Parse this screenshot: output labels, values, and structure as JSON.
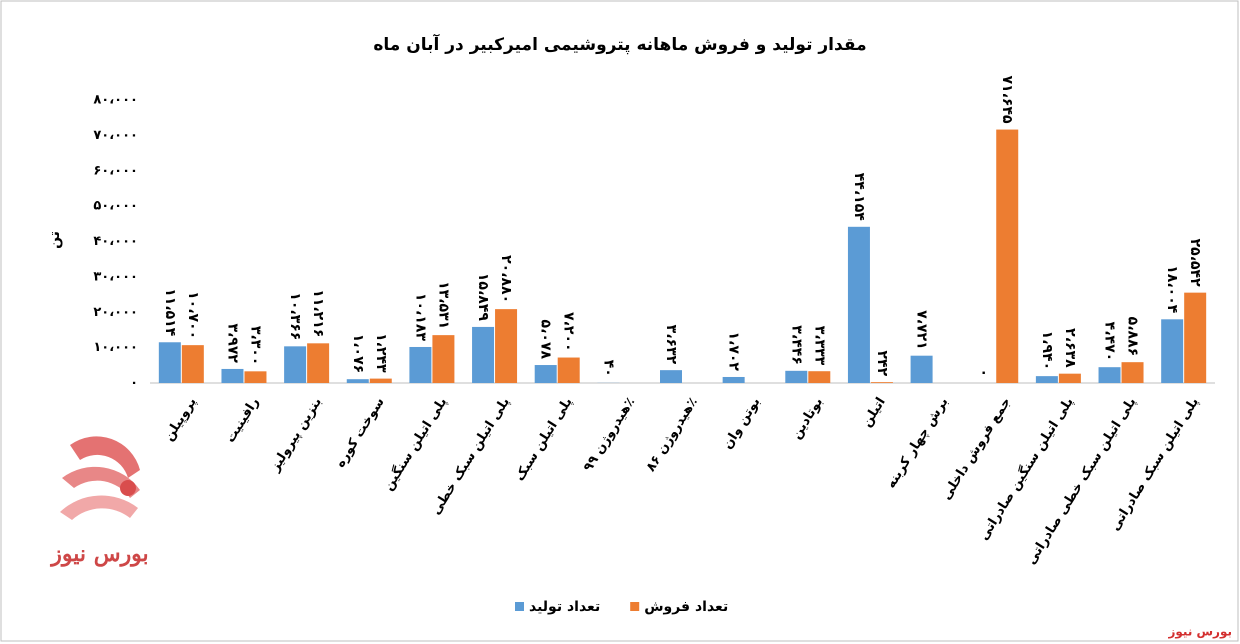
{
  "chart_data": {
    "type": "bar",
    "title": "مقدار تولید و فروش ماهانه پتروشیمی امیرکبیر در آبان ماه",
    "y_label": "تن",
    "categories": [
      "پروپیلن",
      "رافینیت",
      "بنزین پیرولیز",
      "سوخت کوره",
      "پلی اتیلن سنگین",
      "پلی اتیلن سبک خطی",
      "پلی اتیلن سبک",
      "هیدروژن ۹۹٪",
      "هیدروژن ۸۶٪",
      "بوتن وان",
      "بوتادین",
      "اتیلن",
      "برش چهار کربنه",
      "جمع فروش داخلی",
      "پلی اتیلن سنگین صادراتی",
      "پلی اتیلن سبک خطی صادراتی",
      "پلی اتیلن سبک صادراتی"
    ],
    "series": [
      {
        "name": "تعداد تولید",
        "color": "#5b9bd5",
        "values": [
          11514,
          3972,
          10366,
          1076,
          10183,
          15849,
          5078,
          40,
          3632,
          1702,
          3446,
          44154,
          7721,
          0,
          1940,
          4470,
          18004
        ],
        "value_labels": [
          "۱۱،۵۱۴",
          "۳،۹۷۲",
          "۱۰،۳۶۶",
          "۱،۰۷۶",
          "۱۰،۱۸۳",
          "۱۵،۸۴۹",
          "۵،۰۷۸",
          "۴۰",
          "۳،۶۳۲",
          "۱،۷۰۲",
          "۳،۴۴۶",
          "۴۴،۱۵۴",
          "۷،۷۲۱",
          "۰",
          "۱،۹۴۰",
          "۴،۴۷۰",
          "۱۸،۰۰۴"
        ]
      },
      {
        "name": "تعداد فروش",
        "color": "#ed7d31",
        "values": [
          10700,
          3300,
          11216,
          1243,
          13531,
          20880,
          7200,
          null,
          null,
          null,
          3333,
          242,
          null,
          71645,
          2638,
          5886,
          25542
        ],
        "value_labels": [
          "۱۰،۷۰۰",
          "۳،۳۰۰",
          "۱۱،۲۱۶",
          "۱،۲۴۳",
          "۱۳،۵۳۱",
          "۲۰،۸۸۰",
          "۷،۲۰۰",
          null,
          null,
          null,
          "۳،۳۳۳",
          "۲۴۲",
          null,
          "۷۱،۶۴۵",
          "۲،۶۳۸",
          "۵،۸۸۶",
          "۲۵،۵۴۲"
        ]
      }
    ],
    "ylim": [
      0,
      80000
    ],
    "yticks": [
      {
        "value": 0,
        "label": "۰"
      },
      {
        "value": 10000,
        "label": "۱۰،۰۰۰"
      },
      {
        "value": 20000,
        "label": "۲۰،۰۰۰"
      },
      {
        "value": 30000,
        "label": "۳۰،۰۰۰"
      },
      {
        "value": 40000,
        "label": "۴۰،۰۰۰"
      },
      {
        "value": 50000,
        "label": "۵۰،۰۰۰"
      },
      {
        "value": 60000,
        "label": "۶۰،۰۰۰"
      },
      {
        "value": 70000,
        "label": "۷۰،۰۰۰"
      },
      {
        "value": 80000,
        "label": "۸۰،۰۰۰"
      }
    ],
    "grid": false,
    "legend": "bottom"
  },
  "logo_text": "بورس نیوز",
  "watermark": "بورس نیوز"
}
